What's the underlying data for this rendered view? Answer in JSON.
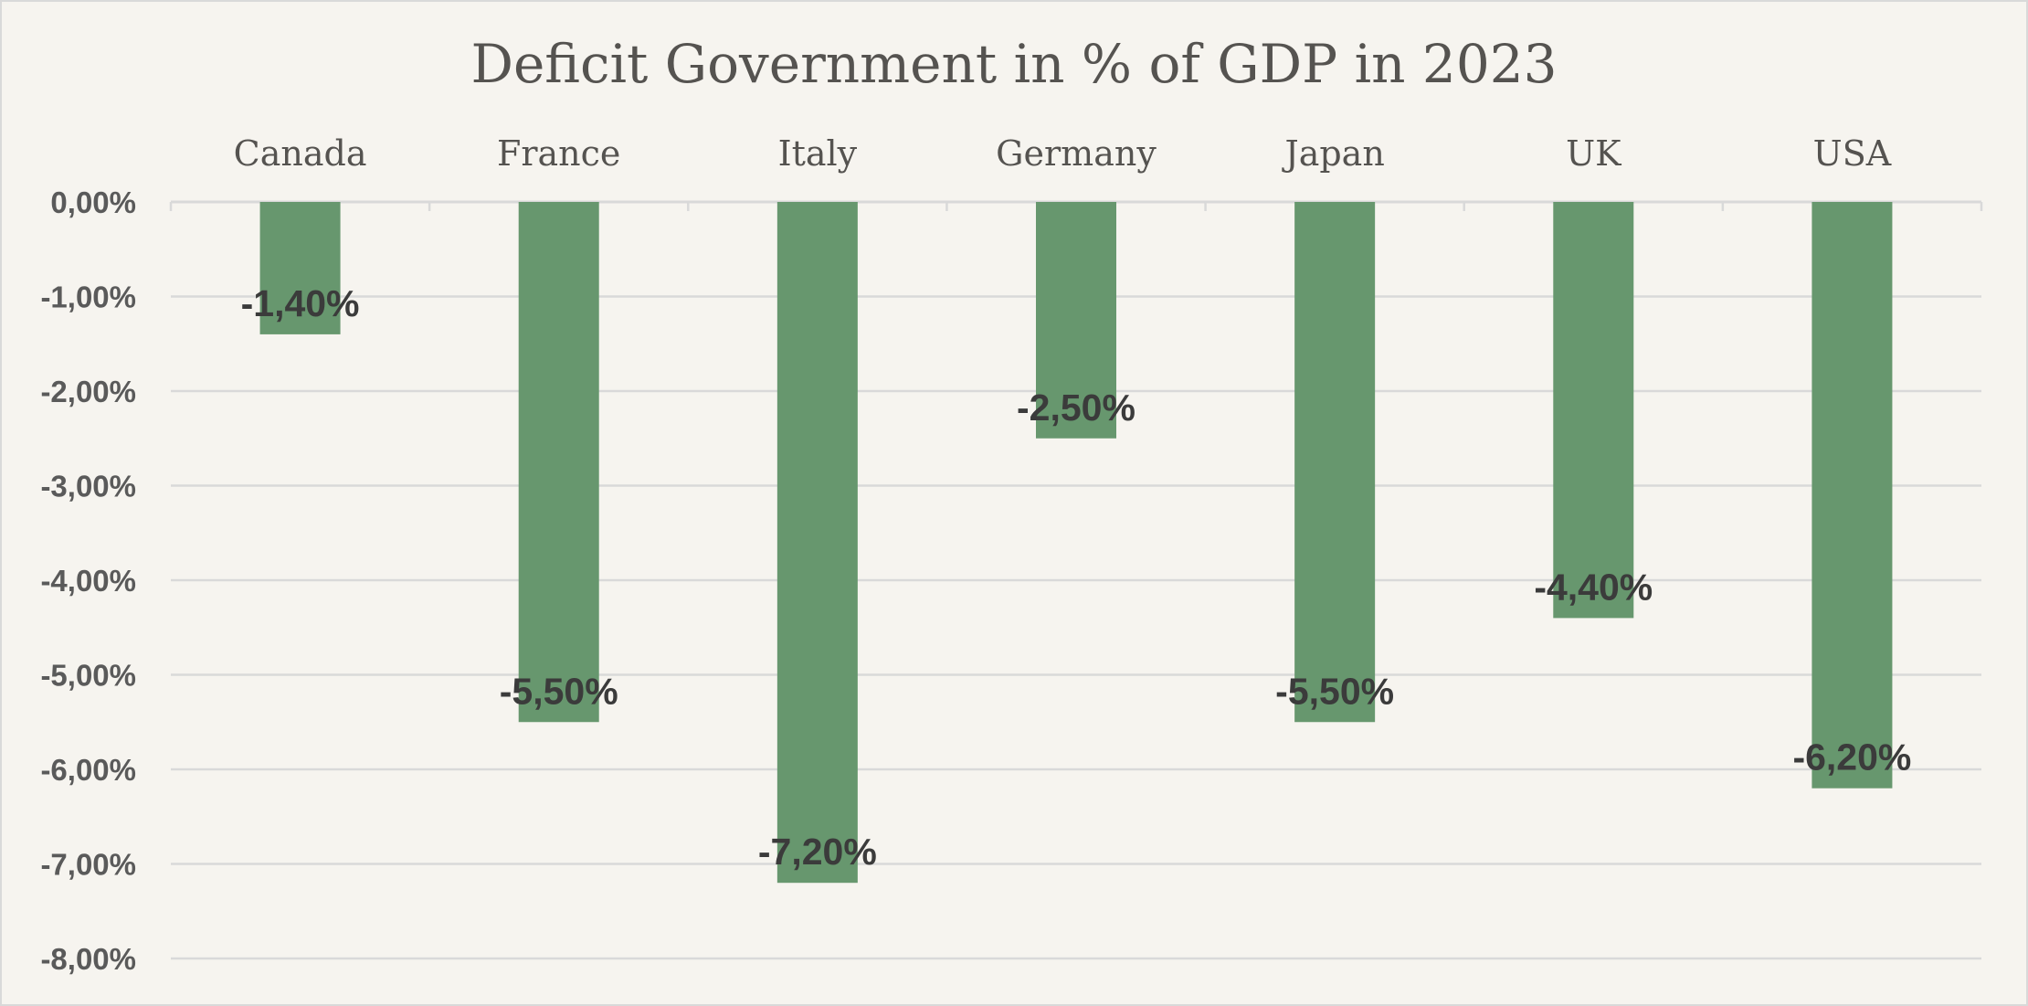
{
  "chart_data": {
    "type": "bar",
    "title": "Deficit Government in % of GDP in 2023",
    "categories": [
      "Canada",
      "France",
      "Italy",
      "Germany",
      "Japan",
      "UK",
      "USA"
    ],
    "values": [
      -1.4,
      -5.5,
      -7.2,
      -2.5,
      -5.5,
      -4.4,
      -6.2
    ],
    "data_labels": [
      "-1,40%",
      "-5,50%",
      "-7,20%",
      "-2,50%",
      "-5,50%",
      "-4,40%",
      "-6,20%"
    ],
    "y_ticks": [
      0,
      -1,
      -2,
      -3,
      -4,
      -5,
      -6,
      -7,
      -8
    ],
    "y_tick_labels": [
      "0,00%",
      "-1,00%",
      "-2,00%",
      "-3,00%",
      "-4,00%",
      "-5,00%",
      "-6,00%",
      "-7,00%",
      "-8,00%"
    ],
    "ylim": [
      -8,
      0
    ],
    "xlabel": "",
    "ylabel": "",
    "category_axis_position": "top",
    "grid": true,
    "legend": "none",
    "colors": {
      "bar": "#67976e",
      "background": "#f6f4ef",
      "gridline": "#d9d9d9",
      "title": "#555350",
      "data_label": "#3b3b3b"
    }
  }
}
